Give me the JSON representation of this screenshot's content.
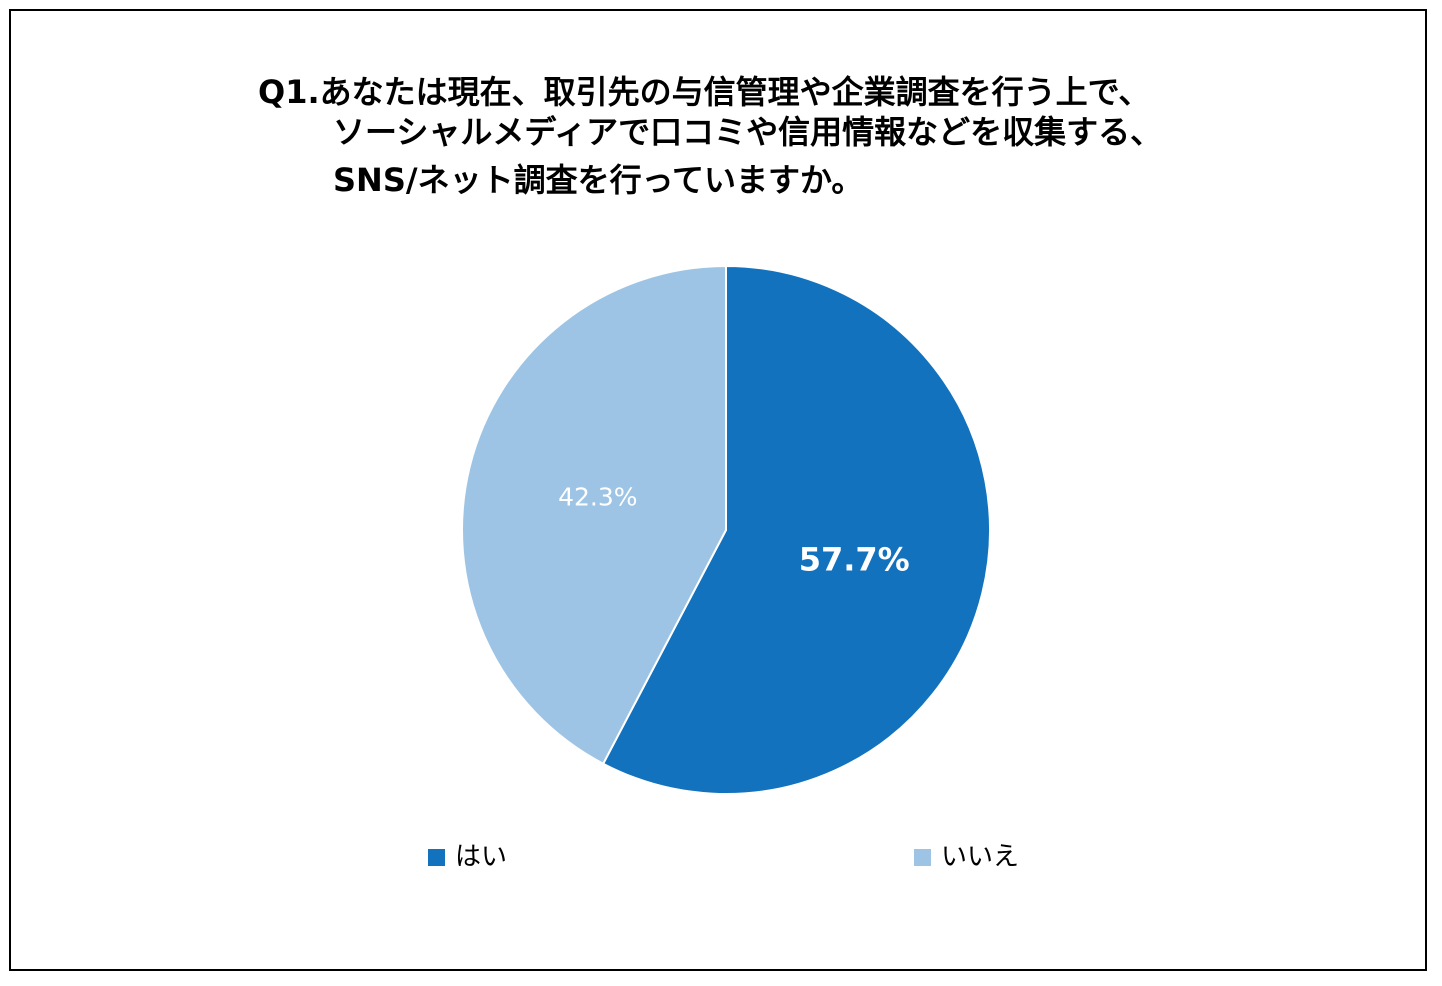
{
  "chart_data": {
    "type": "pie",
    "title_lines": [
      "Q1.あなたは現在、取引先の与信管理や企業調査を行う上で、",
      "ソーシャルメディアで口コミや信用情報などを収集する、",
      "SNS/ネット調査を行っていますか。"
    ],
    "slices": [
      {
        "label": "はい",
        "value": 57.7,
        "display": "57.7%",
        "color": "#1372BD",
        "label_color": "#ffffff",
        "label_bold": true
      },
      {
        "label": "いいえ",
        "value": 42.3,
        "display": "42.3%",
        "color": "#9DC4E4",
        "label_color": "#ffffff",
        "label_bold": false
      }
    ],
    "start_angle": "12 o'clock",
    "direction": "clockwise",
    "legend_position": "bottom"
  }
}
